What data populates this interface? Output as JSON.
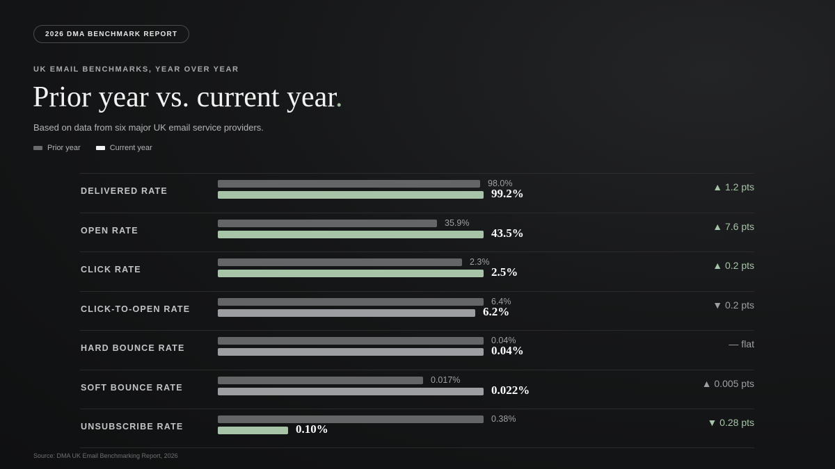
{
  "report_pill": "2026 DMA BENCHMARK REPORT",
  "eyebrow": "UK EMAIL BENCHMARKS, YEAR OVER YEAR",
  "title": "Prior year vs. current year",
  "title_dot": ".",
  "subtitle": "Based on data from six major UK email service providers.",
  "legend": [
    {
      "label": "Prior year",
      "color": "#6a6b6d"
    },
    {
      "label": "Current year",
      "color": "#f2f2f2"
    }
  ],
  "source": "Source: DMA UK Email Benchmarking Report, 2026",
  "colors": {
    "prior": "#646567",
    "current_positive": "#a8c4a8",
    "current_negative": "#9d9ea2",
    "delta_positive": "#a8c4a8",
    "delta_neutral": "#9fa0a2"
  },
  "chart_data": {
    "type": "bar",
    "orientation": "horizontal",
    "series": [
      {
        "name": "Prior year",
        "values": [
          98.0,
          35.9,
          2.3,
          6.4,
          0.04,
          0.017,
          0.38
        ]
      },
      {
        "name": "Current year",
        "values": [
          99.2,
          43.5,
          2.5,
          6.2,
          0.04,
          0.022,
          0.1
        ]
      }
    ],
    "rows": [
      {
        "metric": "DELIVERED RATE",
        "prior": 98.0,
        "current": 99.2,
        "prior_label": "98.0%",
        "current_label": "99.2%",
        "delta": "▲ 1.2 pts",
        "tone": "positive"
      },
      {
        "metric": "OPEN RATE",
        "prior": 35.9,
        "current": 43.5,
        "prior_label": "35.9%",
        "current_label": "43.5%",
        "delta": "▲ 7.6 pts",
        "tone": "positive"
      },
      {
        "metric": "CLICK RATE",
        "prior": 2.3,
        "current": 2.5,
        "prior_label": "2.3%",
        "current_label": "2.5%",
        "delta": "▲ 0.2 pts",
        "tone": "positive"
      },
      {
        "metric": "CLICK-TO-OPEN RATE",
        "prior": 6.4,
        "current": 6.2,
        "prior_label": "6.4%",
        "current_label": "6.2%",
        "delta": "▼ 0.2 pts",
        "tone": "negative"
      },
      {
        "metric": "HARD BOUNCE RATE",
        "prior": 0.04,
        "current": 0.04,
        "prior_label": "0.04%",
        "current_label": "0.04%",
        "delta": "— flat",
        "tone": "neutral"
      },
      {
        "metric": "SOFT BOUNCE RATE",
        "prior": 0.017,
        "current": 0.022,
        "prior_label": "0.017%",
        "current_label": "0.022%",
        "delta": "▲ 0.005 pts",
        "tone": "negative"
      },
      {
        "metric": "UNSUBSCRIBE RATE",
        "prior": 0.38,
        "current": 0.1,
        "prior_label": "0.38%",
        "current_label": "0.10%",
        "delta": "▼ 0.28 pts",
        "tone": "positive"
      }
    ],
    "scaling": "each metric scaled to its own larger value",
    "grid": false,
    "legend_position": "top-left"
  }
}
